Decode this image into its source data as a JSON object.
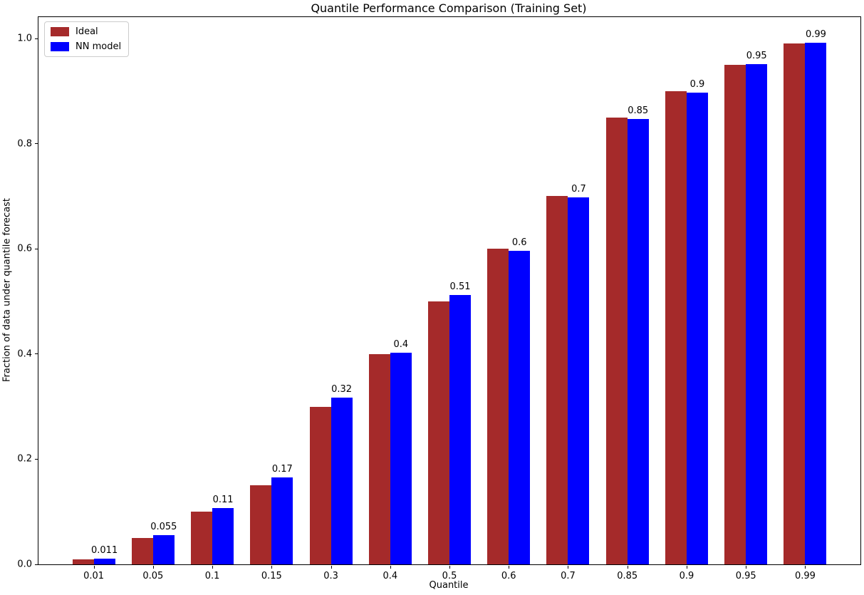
{
  "chart_data": {
    "type": "bar",
    "title": "Quantile Performance Comparison (Training Set)",
    "xlabel": "Quantile",
    "ylabel": "Fraction of data under quantile forecast",
    "categories": [
      "0.01",
      "0.05",
      "0.1",
      "0.15",
      "0.3",
      "0.4",
      "0.5",
      "0.6",
      "0.7",
      "0.85",
      "0.9",
      "0.95",
      "0.99"
    ],
    "series": [
      {
        "name": "Ideal",
        "color": "#A52A2A",
        "values": [
          0.01,
          0.05,
          0.1,
          0.15,
          0.3,
          0.4,
          0.5,
          0.6,
          0.7,
          0.85,
          0.9,
          0.95,
          0.99
        ]
      },
      {
        "name": "NN model",
        "color": "#0000FF",
        "values": [
          0.011,
          0.055,
          0.107,
          0.165,
          0.317,
          0.403,
          0.512,
          0.596,
          0.698,
          0.847,
          0.897,
          0.951,
          0.992
        ]
      }
    ],
    "bar_labels": [
      "0.011",
      "0.055",
      "0.11",
      "0.17",
      "0.32",
      "0.4",
      "0.51",
      "0.6",
      "0.7",
      "0.85",
      "0.9",
      "0.95",
      "0.99"
    ],
    "yticks": [
      "0.0",
      "0.2",
      "0.4",
      "0.6",
      "0.8",
      "1.0"
    ],
    "ylim": [
      0,
      1.04
    ],
    "grid": false,
    "legend_position": "upper left"
  }
}
